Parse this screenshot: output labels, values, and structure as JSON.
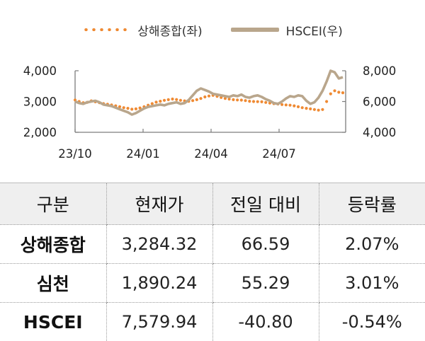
{
  "chart_data": {
    "type": "line",
    "legend": {
      "placement": "top-center"
    },
    "x_tick_labels": [
      "23/10",
      "24/01",
      "24/04",
      "24/07"
    ],
    "y_left": {
      "range": [
        2000,
        4000
      ],
      "ticks": [
        "2,000",
        "3,000",
        "4,000"
      ]
    },
    "y_right": {
      "range": [
        4000,
        8000
      ],
      "ticks": [
        "4,000",
        "6,000",
        "8,000"
      ]
    },
    "grid": false,
    "series": [
      {
        "name": "상해종합(좌)",
        "axis": "left",
        "style": "dotted",
        "color": "#ef8a33",
        "values": [
          3050,
          3000,
          2960,
          2975,
          3020,
          2990,
          2960,
          2930,
          2910,
          2890,
          2860,
          2830,
          2800,
          2780,
          2750,
          2760,
          2790,
          2830,
          2880,
          2930,
          2980,
          3010,
          3040,
          3060,
          3080,
          3065,
          3040,
          3020,
          3010,
          3030,
          3060,
          3100,
          3150,
          3180,
          3200,
          3170,
          3130,
          3100,
          3080,
          3060,
          3050,
          3045,
          3030,
          3010,
          3000,
          2995,
          2990,
          2970,
          2950,
          2930,
          2920,
          2900,
          2890,
          2880,
          2860,
          2830,
          2800,
          2780,
          2760,
          2740,
          2720,
          2740,
          3000,
          3250,
          3350,
          3300,
          3285
        ]
      },
      {
        "name": "HSCEI(우)",
        "axis": "right",
        "style": "solid",
        "color": "#b9a68c",
        "values": [
          6000,
          5900,
          5850,
          5950,
          6000,
          6050,
          5950,
          5800,
          5750,
          5700,
          5600,
          5500,
          5400,
          5300,
          5150,
          5250,
          5400,
          5550,
          5650,
          5700,
          5750,
          5800,
          5750,
          5850,
          5900,
          5950,
          5850,
          5900,
          6100,
          6400,
          6700,
          6850,
          6750,
          6650,
          6500,
          6450,
          6400,
          6350,
          6300,
          6400,
          6350,
          6450,
          6300,
          6250,
          6350,
          6400,
          6300,
          6150,
          6050,
          5900,
          5850,
          6000,
          6200,
          6350,
          6300,
          6400,
          6350,
          6050,
          5850,
          5950,
          6250,
          6700,
          7300,
          8000,
          7900,
          7500,
          7580
        ]
      }
    ]
  },
  "table": {
    "headers": [
      "구분",
      "현재가",
      "전일 대비",
      "등락률"
    ],
    "rows": [
      {
        "name": "상해종합",
        "price": "3,284.32",
        "change": "66.59",
        "rate": "2.07%"
      },
      {
        "name": "심천",
        "price": "1,890.24",
        "change": "55.29",
        "rate": "3.01%"
      },
      {
        "name": "HSCEI",
        "price": "7,579.94",
        "change": "-40.80",
        "rate": "-0.54%"
      }
    ]
  }
}
